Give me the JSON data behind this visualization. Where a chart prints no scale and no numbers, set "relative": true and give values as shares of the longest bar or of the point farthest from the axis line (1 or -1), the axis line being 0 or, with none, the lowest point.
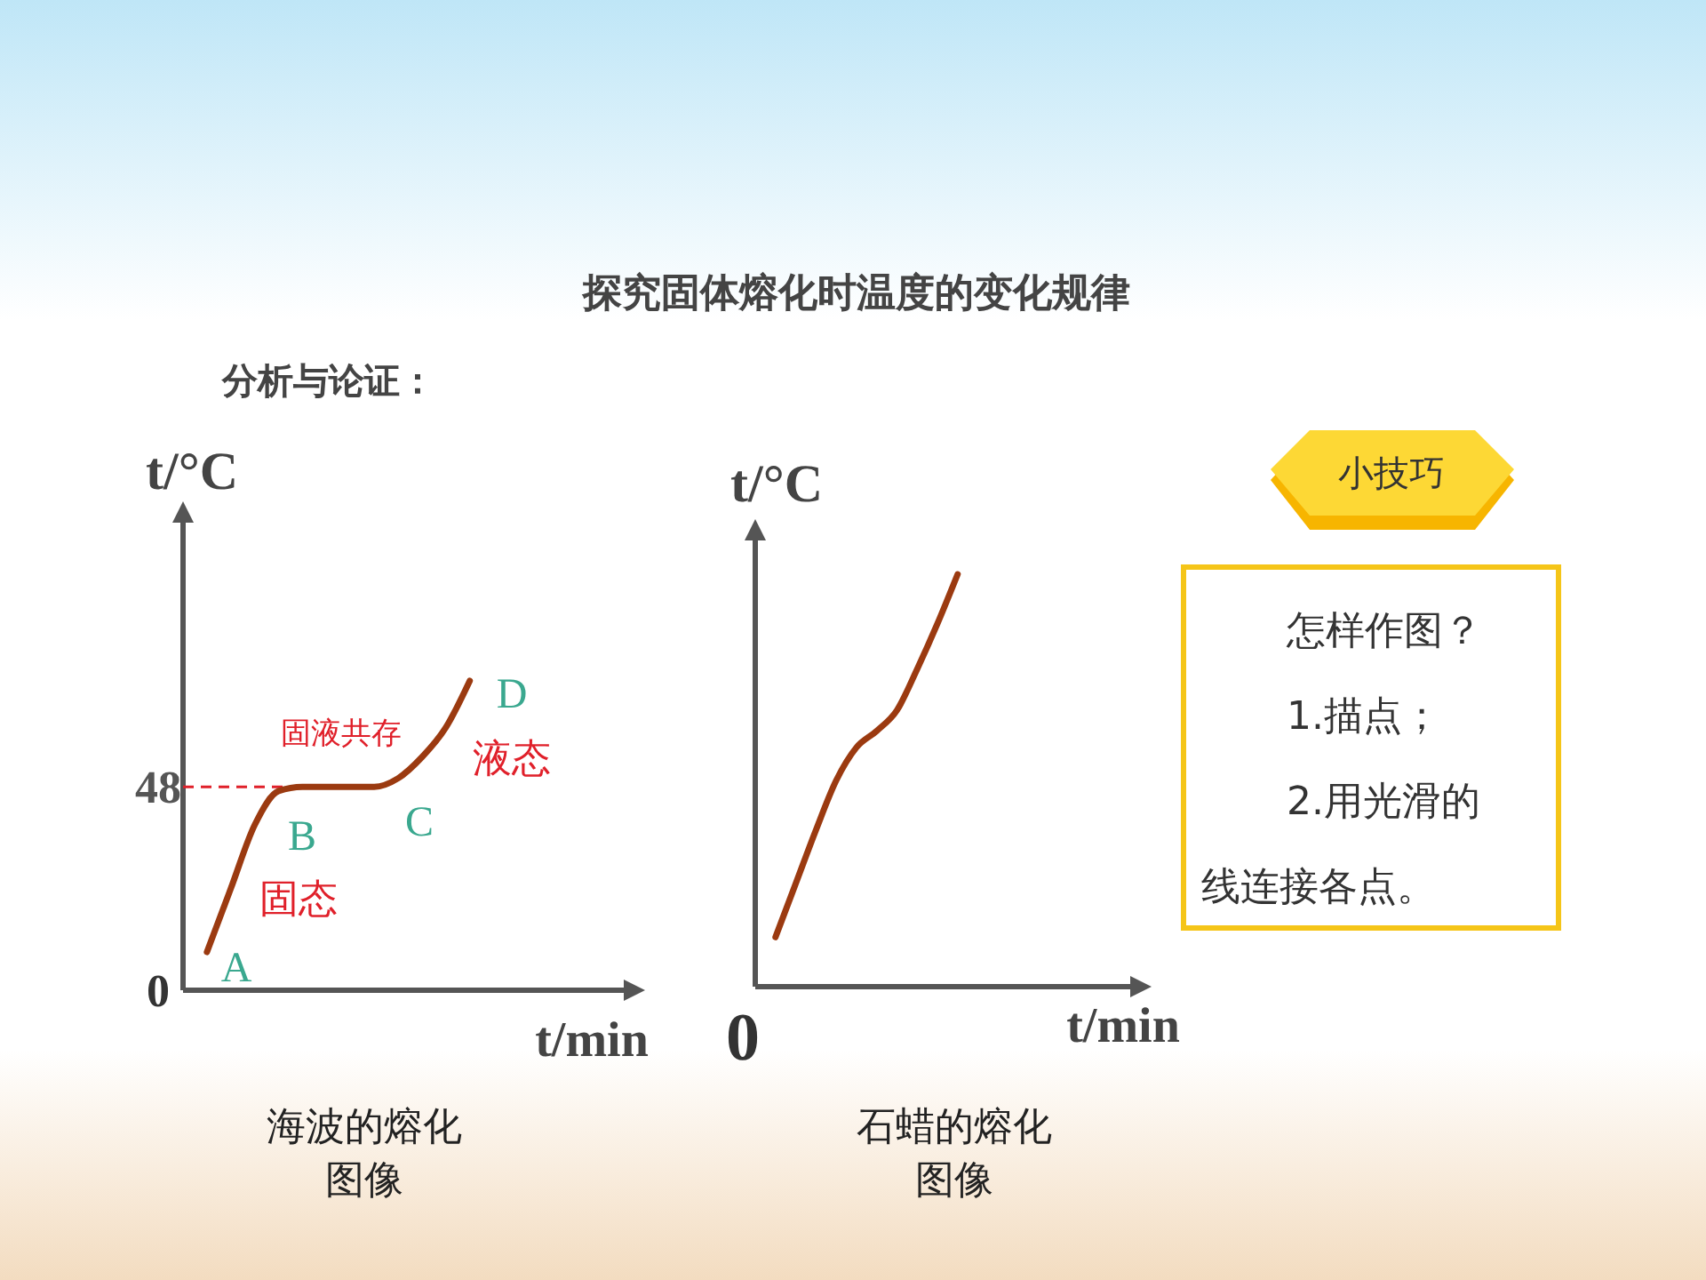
{
  "chart_data": [
    {
      "type": "other",
      "title": "探究固体熔化时温度的变化规律",
      "subtitle": "分析与论证："
    },
    {
      "type": "line",
      "title": "海波的熔化图像",
      "xlabel": "t/min",
      "ylabel": "t/°C",
      "categories": [
        null,
        null,
        null,
        null,
        null,
        null,
        null,
        null,
        null,
        null,
        null,
        null,
        null,
        null,
        null,
        null,
        null,
        null,
        null
      ],
      "series": [
        {
          "color": "#9b3a10",
          "values": [
            null,
            9,
            24,
            39,
            47,
            48,
            48,
            48,
            48,
            50,
            55,
            62,
            73,
            null,
            null,
            null,
            null,
            null,
            null
          ]
        }
      ],
      "ylim": [
        0,
        112
      ],
      "yticks": [
        0,
        48
      ],
      "ref_lines": [
        {
          "axis": "y",
          "value": 48,
          "color": "#e0202a",
          "line_style": "dashed"
        }
      ],
      "annotations": [
        "A",
        "B",
        "C",
        "D",
        "固液共存",
        "液态",
        "固态"
      ],
      "marker": "none",
      "line_style": "solid",
      "grid": false,
      "legend": false
    },
    {
      "type": "line",
      "title": "石蜡的熔化图像",
      "xlabel": "t/min",
      "ylabel": "t/°C",
      "relative": true,
      "categories": [
        null,
        null,
        null,
        null,
        null,
        null,
        null,
        null,
        null,
        null,
        null,
        null,
        null,
        null,
        null,
        null,
        null,
        null,
        null
      ],
      "series": [
        {
          "color": "#9b3a10",
          "values": [
            null,
            0.12,
            0.25,
            0.38,
            0.5,
            0.58,
            0.62,
            0.67,
            0.77,
            0.88,
            1,
            null,
            null,
            null,
            null,
            null,
            null,
            null,
            null
          ]
        }
      ],
      "annotations": [
        "0"
      ],
      "marker": "none",
      "line_style": "solid",
      "grid": false,
      "legend": false
    },
    {
      "type": "other",
      "title": "小技巧",
      "annotations": [
        "怎样作图？",
        "1.描点；",
        "2.用光滑的线连接各点。"
      ]
    }
  ]
}
